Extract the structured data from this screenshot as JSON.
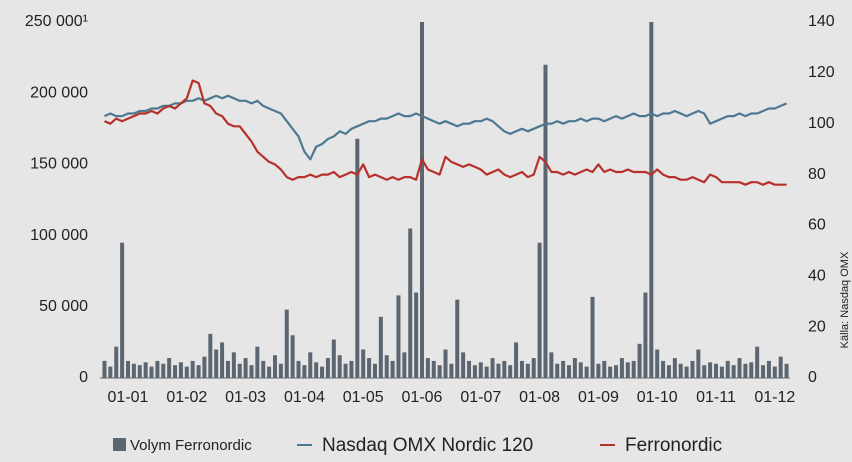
{
  "chart_data": {
    "type": "combo",
    "source": "Källa: Nasdaq OMX",
    "xlim": [
      -0.45,
      11.3
    ],
    "xticks": [
      {
        "value": 0,
        "label": "01-01"
      },
      {
        "value": 1,
        "label": "01-02"
      },
      {
        "value": 2,
        "label": "01-03"
      },
      {
        "value": 3,
        "label": "01-04"
      },
      {
        "value": 4,
        "label": "01-05"
      },
      {
        "value": 5,
        "label": "01-06"
      },
      {
        "value": 6,
        "label": "01-07"
      },
      {
        "value": 7,
        "label": "01-08"
      },
      {
        "value": 8,
        "label": "01-09"
      },
      {
        "value": 9,
        "label": "01-10"
      },
      {
        "value": 10,
        "label": "01-11"
      },
      {
        "value": 11,
        "label": "01-12"
      }
    ],
    "ylim": [
      0,
      250000
    ],
    "yticks": [
      {
        "value": 0,
        "label": "0"
      },
      {
        "value": 50000,
        "label": "50 000"
      },
      {
        "value": 100000,
        "label": "100 000"
      },
      {
        "value": 150000,
        "label": "150 000"
      },
      {
        "value": 200000,
        "label": "200 000"
      },
      {
        "value": 250000,
        "label": "250 000¹"
      }
    ],
    "y2lim": [
      0,
      140
    ],
    "y2ticks": [
      0,
      20,
      40,
      60,
      80,
      100,
      120,
      140
    ],
    "x": [
      -0.4,
      -0.3,
      -0.2,
      -0.1,
      0,
      0.1,
      0.2,
      0.3,
      0.4,
      0.5,
      0.6,
      0.7,
      0.8,
      0.9,
      1,
      1.1,
      1.2,
      1.3,
      1.4,
      1.5,
      1.6,
      1.7,
      1.8,
      1.9,
      2,
      2.1,
      2.2,
      2.3,
      2.4,
      2.5,
      2.6,
      2.7,
      2.8,
      2.9,
      3,
      3.1,
      3.2,
      3.3,
      3.4,
      3.5,
      3.6,
      3.7,
      3.8,
      3.9,
      4,
      4.1,
      4.2,
      4.3,
      4.4,
      4.5,
      4.6,
      4.7,
      4.8,
      4.9,
      5,
      5.1,
      5.2,
      5.3,
      5.4,
      5.5,
      5.6,
      5.7,
      5.8,
      5.9,
      6,
      6.1,
      6.2,
      6.3,
      6.4,
      6.5,
      6.6,
      6.7,
      6.8,
      6.9,
      7,
      7.1,
      7.2,
      7.3,
      7.4,
      7.5,
      7.6,
      7.7,
      7.8,
      7.9,
      8,
      8.1,
      8.2,
      8.3,
      8.4,
      8.5,
      8.6,
      8.7,
      8.8,
      8.9,
      9,
      9.1,
      9.2,
      9.3,
      9.4,
      9.5,
      9.6,
      9.7,
      9.8,
      9.9,
      10,
      10.1,
      10.2,
      10.3,
      10.4,
      10.5,
      10.6,
      10.7,
      10.8,
      10.9,
      11,
      11.1,
      11.2
    ],
    "series": [
      {
        "name": "Volym Ferronordic",
        "type": "bar",
        "color": "#5b6670",
        "values": [
          12000,
          8000,
          22000,
          95000,
          12000,
          10000,
          9000,
          11000,
          8000,
          12000,
          10000,
          14000,
          9000,
          11000,
          8000,
          12000,
          9000,
          15000,
          31000,
          20000,
          25000,
          12000,
          18000,
          10000,
          14000,
          9000,
          22000,
          12000,
          8000,
          16000,
          10000,
          48000,
          30000,
          12000,
          9000,
          18000,
          11000,
          8000,
          14000,
          27000,
          16000,
          10000,
          12000,
          168000,
          20000,
          14000,
          10000,
          43000,
          16000,
          12000,
          58000,
          18000,
          105000,
          60000,
          250000,
          14000,
          12000,
          9000,
          20000,
          10000,
          55000,
          18000,
          12000,
          9000,
          11000,
          8000,
          14000,
          10000,
          12000,
          9000,
          25000,
          12000,
          10000,
          14000,
          95000,
          220000,
          18000,
          10000,
          12000,
          9000,
          14000,
          11000,
          8000,
          57000,
          10000,
          12000,
          8000,
          9000,
          14000,
          11000,
          12000,
          24000,
          60000,
          250000,
          20000,
          12000,
          9000,
          14000,
          10000,
          8000,
          12000,
          20000,
          9000,
          11000,
          10000,
          8000,
          12000,
          9000,
          14000,
          10000,
          11000,
          22000,
          9000,
          12000,
          8000,
          15000,
          10000
        ]
      },
      {
        "name": "Nasdaq OMX Nordic 120",
        "type": "line",
        "axis": "y2",
        "color": "#4d7891",
        "values": [
          103,
          104,
          103,
          103,
          104,
          104,
          105,
          105,
          106,
          106,
          107,
          107,
          108,
          108,
          109,
          109,
          110,
          109,
          110,
          111,
          110,
          111,
          110,
          109,
          109,
          108,
          109,
          107,
          106,
          105,
          104,
          101,
          98,
          95,
          89,
          86,
          91,
          92,
          94,
          95,
          97,
          96,
          98,
          99,
          100,
          101,
          101,
          102,
          102,
          103,
          104,
          103,
          103,
          104,
          103,
          102,
          101,
          100,
          101,
          100,
          99,
          100,
          100,
          101,
          101,
          102,
          101,
          99,
          97,
          96,
          97,
          98,
          97,
          98,
          99,
          100,
          100,
          101,
          100,
          101,
          101,
          102,
          101,
          102,
          102,
          101,
          102,
          103,
          102,
          103,
          104,
          103,
          103,
          104,
          103,
          104,
          104,
          105,
          104,
          103,
          104,
          105,
          104,
          100,
          101,
          102,
          103,
          103,
          104,
          103,
          104,
          104,
          105,
          106,
          106,
          107,
          108
        ]
      },
      {
        "name": "Ferronordic",
        "type": "line",
        "axis": "y2",
        "color": "#b7312c",
        "values": [
          101,
          100,
          102,
          101,
          102,
          103,
          104,
          104,
          105,
          104,
          106,
          107,
          106,
          108,
          110,
          117,
          116,
          108,
          107,
          104,
          103,
          100,
          99,
          99,
          96,
          93,
          89,
          87,
          85,
          84,
          82,
          79,
          78,
          79,
          79,
          80,
          79,
          80,
          80,
          81,
          79,
          80,
          81,
          80,
          84,
          79,
          80,
          79,
          78,
          79,
          78,
          79,
          79,
          78,
          86,
          82,
          81,
          80,
          87,
          85,
          84,
          83,
          84,
          83,
          82,
          80,
          81,
          82,
          80,
          79,
          80,
          81,
          79,
          80,
          87,
          85,
          81,
          81,
          80,
          81,
          80,
          81,
          82,
          81,
          84,
          81,
          82,
          81,
          81,
          82,
          81,
          81,
          81,
          80,
          82,
          80,
          79,
          79,
          78,
          78,
          79,
          78,
          77,
          80,
          79,
          77,
          77,
          77,
          77,
          76,
          77,
          77,
          76,
          77,
          76,
          76,
          76
        ]
      }
    ]
  }
}
